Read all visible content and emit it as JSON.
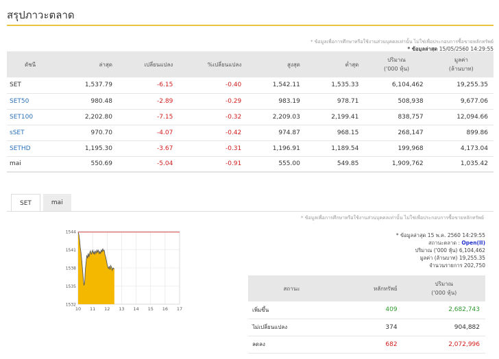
{
  "page": {
    "title": "สรุปภาวะตลาด",
    "disclaimer": "* ข้อมูลเพื่อการศึกษาหรือใช้งานส่วนบุคคลเท่านั้น ไม่ใช่เพื่อประกอบการซื้อขายหลักทรัพย์",
    "as_of_label": "* ข้อมูลล่าสุด",
    "as_of_value": "15/05/2560 14:29:55"
  },
  "index_table": {
    "headers": [
      "ดัชนี",
      "ล่าสุด",
      "เปลี่ยนแปลง",
      "%เปลี่ยนแปลง",
      "สูงสุด",
      "ต่ำสุด",
      "ปริมาณ\n('000 หุ้น)",
      "มูลค่า\n(ล้านบาท)"
    ],
    "rows": [
      {
        "name": "SET",
        "last": "1,537.79",
        "chg": "-6.15",
        "pct": "-0.40",
        "high": "1,542.11",
        "low": "1,535.33",
        "vol": "6,104,462",
        "val": "19,255.35"
      },
      {
        "name": "SET50",
        "last": "980.48",
        "chg": "-2.89",
        "pct": "-0.29",
        "high": "983.19",
        "low": "978.71",
        "vol": "508,938",
        "val": "9,677.06"
      },
      {
        "name": "SET100",
        "last": "2,202.80",
        "chg": "-7.15",
        "pct": "-0.32",
        "high": "2,209.03",
        "low": "2,199.41",
        "vol": "838,757",
        "val": "12,094.66"
      },
      {
        "name": "sSET",
        "last": "970.70",
        "chg": "-4.07",
        "pct": "-0.42",
        "high": "974.87",
        "low": "968.15",
        "vol": "268,147",
        "val": "899.86"
      },
      {
        "name": "SETHD",
        "last": "1,195.30",
        "chg": "-3.67",
        "pct": "-0.31",
        "high": "1,196.91",
        "low": "1,189.54",
        "vol": "199,968",
        "val": "4,173.04"
      },
      {
        "name": "mai",
        "last": "550.69",
        "chg": "-5.04",
        "pct": "-0.91",
        "high": "555.00",
        "low": "549.85",
        "vol": "1,909,762",
        "val": "1,035.42"
      }
    ]
  },
  "tabs": [
    {
      "label": "SET",
      "active": true
    },
    {
      "label": "mai",
      "active": false
    }
  ],
  "chart_data": {
    "type": "area",
    "x": [
      10,
      10.05,
      10.1,
      10.15,
      10.2,
      10.25,
      10.3,
      10.35,
      10.4,
      10.45,
      10.5,
      10.55,
      10.6,
      10.65,
      10.7,
      10.75,
      10.8,
      10.85,
      10.9,
      10.95,
      11,
      11.05,
      11.1,
      11.15,
      11.2,
      11.25,
      11.3,
      11.35,
      11.4,
      11.45,
      11.5,
      11.55,
      11.6,
      11.65,
      11.7,
      11.75,
      11.8,
      11.85,
      11.9,
      11.95,
      12,
      12.05,
      12.1,
      12.15,
      12.2,
      12.25,
      12.3,
      12.35,
      12.4,
      12.5
    ],
    "values": [
      1543.9,
      1543.5,
      1542.6,
      1541.3,
      1540.4,
      1539.2,
      1537.8,
      1536.4,
      1535.1,
      1535.6,
      1537.8,
      1539.0,
      1540.1,
      1539.6,
      1540.4,
      1539.8,
      1540.5,
      1540.8,
      1540.2,
      1540.6,
      1540.9,
      1540.3,
      1540.7,
      1540.2,
      1540.8,
      1540.4,
      1541.0,
      1540.6,
      1540.9,
      1540.3,
      1540.7,
      1540.4,
      1541.0,
      1540.6,
      1541.2,
      1540.8,
      1540.9,
      1540.2,
      1539.8,
      1539.2,
      1538.6,
      1538.1,
      1537.9,
      1538.3,
      1537.7,
      1538.4,
      1538.1,
      1537.6,
      1538.0,
      1537.8
    ],
    "reference": 1543.9,
    "xticks": [
      "10",
      "11",
      "12",
      "13",
      "14",
      "15",
      "16",
      "17"
    ],
    "xlim": [
      10,
      17
    ],
    "yticks": [
      "1532",
      "1535",
      "1538",
      "1541",
      "1544"
    ],
    "ylim": [
      1532,
      1544
    ],
    "colors": {
      "fill": "#f5b800",
      "line": "#555555",
      "reference": "#e02020",
      "grid": "#e2e2e2"
    }
  },
  "summary": {
    "disclaimer": "* ข้อมูลเพื่อการศึกษาหรือใช้งานส่วนบุคคลเท่านั้น ไม่ใช่เพื่อประกอบการซื้อขายหลักทรัพย์",
    "as_of": "* ข้อมูลล่าสุด 15 พ.ค. 2560 14:29:55",
    "status_label": "สถานะตลาด :",
    "status_value": "Open(II)",
    "volume_line": "ปริมาณ ('000 หุ้น) 6,104,462",
    "value_line": "มูลค่า (ล้านบาท) 19,255.35",
    "trades_line": "จำนวนรายการ 202,750",
    "table": {
      "headers": [
        "สถานะ",
        "หลักทรัพย์",
        "ปริมาณ\n('000 หุ้น)"
      ],
      "rows": [
        {
          "status": "เพิ่มขึ้น",
          "count": "409",
          "volume": "2,682,743",
          "color": "green"
        },
        {
          "status": "ไม่เปลี่ยนแปลง",
          "count": "374",
          "volume": "904,882",
          "color": "neutral"
        },
        {
          "status": "ลดลง",
          "count": "682",
          "volume": "2,072,996",
          "color": "red"
        }
      ]
    }
  }
}
